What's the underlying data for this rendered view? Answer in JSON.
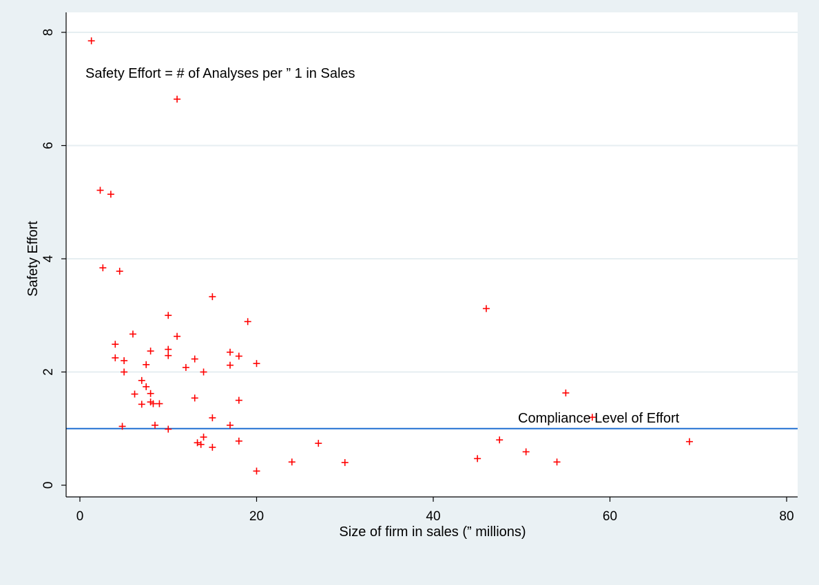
{
  "chart_data": {
    "type": "scatter",
    "xlabel": "Size of firm in sales (” millions)",
    "ylabel": "Safety Effort",
    "xlim": [
      0,
      80
    ],
    "ylim": [
      0,
      8
    ],
    "xticks": [
      0,
      20,
      40,
      60,
      80
    ],
    "yticks": [
      0,
      2,
      4,
      6,
      8
    ],
    "grid": "horizontal",
    "annotations": {
      "definition": "Safety Effort = # of Analyses per ” 1 in Sales",
      "compliance": "Compliance Level of Effort"
    },
    "reference_line": {
      "y": 1.0,
      "color": "#1f6fd1"
    },
    "marker_color": "#ff0000",
    "points": [
      [
        1.3,
        7.85
      ],
      [
        11.0,
        6.82
      ],
      [
        2.3,
        5.21
      ],
      [
        3.5,
        5.14
      ],
      [
        2.6,
        3.84
      ],
      [
        4.5,
        3.78
      ],
      [
        15.0,
        3.33
      ],
      [
        10.0,
        3.0
      ],
      [
        19.0,
        2.89
      ],
      [
        6.0,
        2.67
      ],
      [
        11.0,
        2.63
      ],
      [
        4.0,
        2.49
      ],
      [
        10.0,
        2.4
      ],
      [
        8.0,
        2.37
      ],
      [
        17.0,
        2.35
      ],
      [
        10.0,
        2.29
      ],
      [
        18.0,
        2.28
      ],
      [
        4.0,
        2.25
      ],
      [
        13.0,
        2.23
      ],
      [
        5.0,
        2.2
      ],
      [
        20.0,
        2.15
      ],
      [
        7.5,
        2.13
      ],
      [
        17.0,
        2.12
      ],
      [
        12.0,
        2.08
      ],
      [
        5.0,
        2.0
      ],
      [
        14.0,
        2.0
      ],
      [
        7.0,
        1.85
      ],
      [
        7.5,
        1.74
      ],
      [
        6.2,
        1.61
      ],
      [
        8.0,
        1.62
      ],
      [
        13.0,
        1.54
      ],
      [
        18.0,
        1.5
      ],
      [
        8.0,
        1.47
      ],
      [
        8.3,
        1.44
      ],
      [
        7.0,
        1.43
      ],
      [
        9.0,
        1.44
      ],
      [
        15.0,
        1.19
      ],
      [
        8.5,
        1.06
      ],
      [
        17.0,
        1.06
      ],
      [
        4.8,
        1.04
      ],
      [
        10.0,
        0.99
      ],
      [
        14.0,
        0.85
      ],
      [
        13.3,
        0.75
      ],
      [
        13.7,
        0.72
      ],
      [
        18.0,
        0.78
      ],
      [
        15.0,
        0.67
      ],
      [
        20.0,
        0.25
      ],
      [
        24.0,
        0.41
      ],
      [
        27.0,
        0.74
      ],
      [
        30.0,
        0.4
      ],
      [
        46.0,
        3.12
      ],
      [
        55.0,
        1.63
      ],
      [
        58.0,
        1.2
      ],
      [
        47.5,
        0.8
      ],
      [
        45.0,
        0.47
      ],
      [
        50.5,
        0.59
      ],
      [
        54.0,
        0.41
      ],
      [
        69.0,
        0.77
      ]
    ]
  }
}
